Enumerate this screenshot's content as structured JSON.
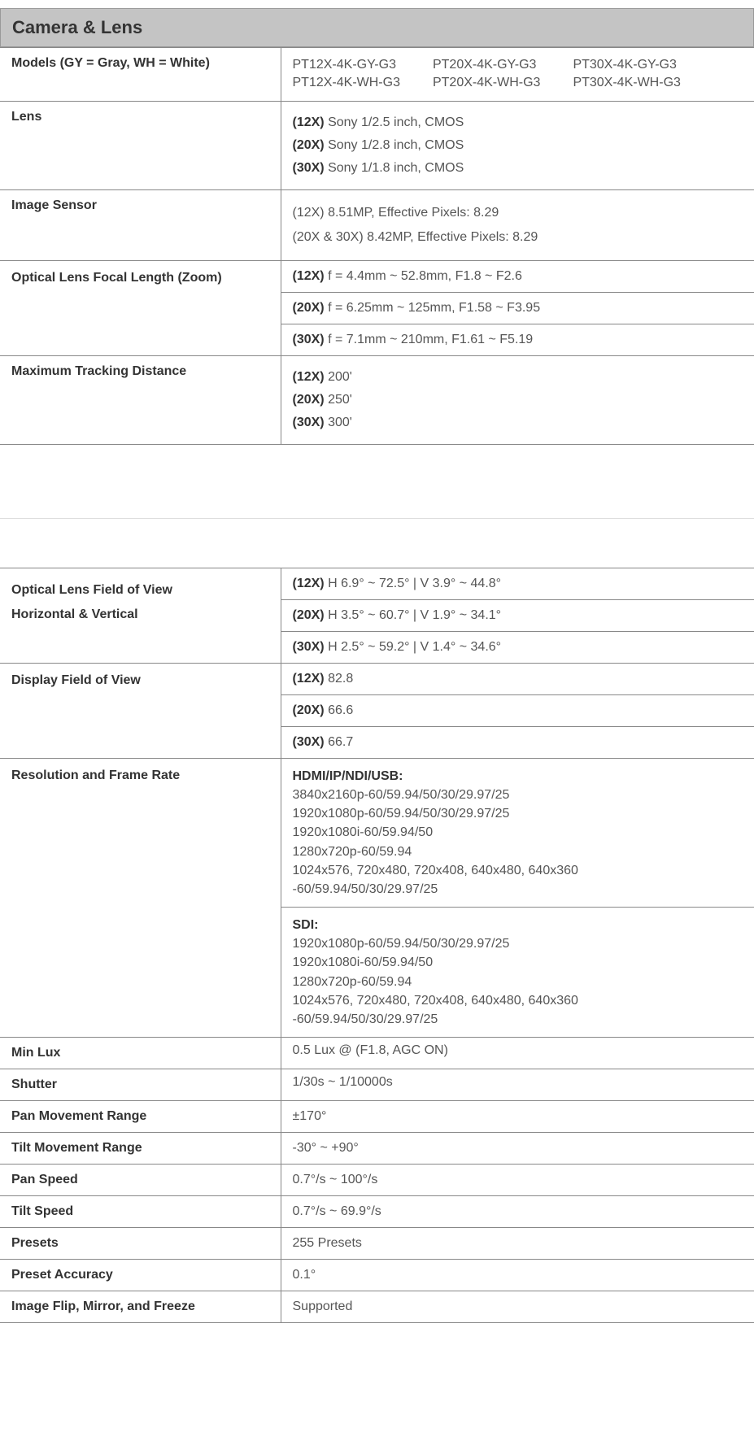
{
  "section_title": "Camera & Lens",
  "rows1": {
    "models_label": "Models (GY = Gray, WH = White)",
    "models": {
      "col1a": "PT12X-4K-GY-G3",
      "col1b": "PT12X-4K-WH-G3",
      "col2a": "PT20X-4K-GY-G3",
      "col2b": "PT20X-4K-WH-G3",
      "col3a": "PT30X-4K-GY-G3",
      "col3b": "PT30X-4K-WH-G3"
    },
    "lens_label": "Lens",
    "lens": {
      "a_b": "(12X)",
      "a_t": " Sony 1/2.5 inch, CMOS",
      "b_b": "(20X)",
      "b_t": " Sony 1/2.8 inch, CMOS",
      "c_b": "(30X)",
      "c_t": " Sony 1/1.8 inch, CMOS"
    },
    "sensor_label": "Image Sensor",
    "sensor": {
      "a": "(12X) 8.51MP, Effective Pixels: 8.29",
      "b": "(20X & 30X) 8.42MP, Effective Pixels: 8.29"
    },
    "focal_label": "Optical Lens Focal Length (Zoom)",
    "focal": {
      "a_b": "(12X)",
      "a_t": " f = 4.4mm ~ 52.8mm, F1.8 ~ F2.6",
      "b_b": "(20X)",
      "b_t": " f = 6.25mm ~ 125mm, F1.58 ~ F3.95",
      "c_b": "(30X)",
      "c_t": " f = 7.1mm ~ 210mm, F1.61 ~ F5.19"
    },
    "track_label": "Maximum Tracking Distance",
    "track": {
      "a_b": "(12X)",
      "a_t": " 200'",
      "b_b": "(20X)",
      "b_t": " 250'",
      "c_b": "(30X)",
      "c_t": " 300'"
    }
  },
  "rows2": {
    "fov_label_a": "Optical Lens Field of View",
    "fov_label_b": "Horizontal & Vertical",
    "fov": {
      "a_b": "(12X)",
      "a_t": " H 6.9° ~ 72.5° | V 3.9° ~ 44.8°",
      "b_b": "(20X)",
      "b_t": " H 3.5° ~ 60.7° | V 1.9° ~ 34.1°",
      "c_b": "(30X)",
      "c_t": " H 2.5° ~ 59.2° | V 1.4° ~ 34.6°"
    },
    "dfov_label": "Display Field of View",
    "dfov": {
      "a_b": "(12X)",
      "a_t": " 82.8",
      "b_b": "(20X)",
      "b_t": " 66.6",
      "c_b": "(30X)",
      "c_t": " 66.7"
    },
    "res_label": "Resolution and Frame Rate",
    "res": {
      "hdr1": "HDMI/IP/NDI/USB:",
      "l1": "3840x2160p-60/59.94/50/30/29.97/25",
      "l2": "1920x1080p-60/59.94/50/30/29.97/25",
      "l3": "1920x1080i-60/59.94/50",
      "l4": "1280x720p-60/59.94",
      "l5": "1024x576, 720x480, 720x408, 640x480, 640x360",
      "l6": "-60/59.94/50/30/29.97/25",
      "hdr2": "SDI:",
      "s1": "1920x1080p-60/59.94/50/30/29.97/25",
      "s2": "1920x1080i-60/59.94/50",
      "s3": "1280x720p-60/59.94",
      "s4": "1024x576, 720x480, 720x408, 640x480, 640x360",
      "s5": "-60/59.94/50/30/29.97/25"
    },
    "minlux_label": "Min Lux",
    "minlux": "0.5 Lux @ (F1.8, AGC ON)",
    "shutter_label": "Shutter",
    "shutter": "1/30s ~ 1/10000s",
    "pan_label": "Pan Movement Range",
    "pan": "±170°",
    "tilt_label": "Tilt Movement Range",
    "tilt": "-30° ~ +90°",
    "panspeed_label": "Pan Speed",
    "panspeed": "0.7°/s ~ 100°/s",
    "tiltspeed_label": "Tilt Speed",
    "tiltspeed": "0.7°/s ~ 69.9°/s",
    "presets_label": "Presets",
    "presets": "255 Presets",
    "presetacc_label": "Preset Accuracy",
    "presetacc": "0.1°",
    "flip_label": "Image Flip, Mirror, and Freeze",
    "flip": "Supported"
  }
}
